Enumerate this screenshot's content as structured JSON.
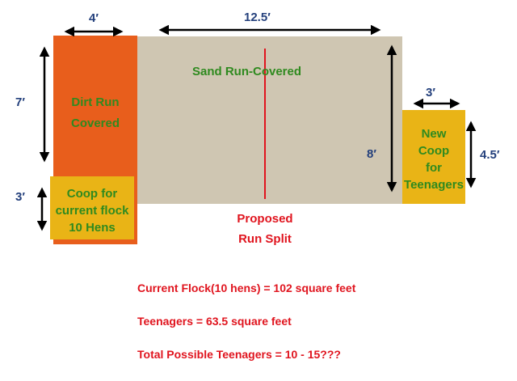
{
  "colors": {
    "dirt_run": "#e85e1c",
    "sand_run": "#cfc6b2",
    "coop": "#e9b416",
    "label_green": "#2f8a1f",
    "dimension_blue": "#24407c",
    "note_red": "#e0141e",
    "split_line": "#e0141e"
  },
  "areas": {
    "dirt_run": "Dirt Run Covered",
    "sand_run": "Sand Run-Covered",
    "current_coop": [
      "Coop for",
      "current flock",
      "10 Hens"
    ],
    "new_coop": [
      "New",
      "Coop",
      "for",
      "Teenagers"
    ]
  },
  "dimensions": {
    "dirt_width": "4′",
    "sand_width": "12.5′",
    "dirt_height": "7′",
    "coop_height": "3′",
    "sand_height": "8′",
    "new_coop_width": "3′",
    "new_coop_height": "4.5′"
  },
  "split_label": [
    "Proposed",
    "Run Split"
  ],
  "notes": [
    "Current Flock(10 hens) = 102 square feet",
    "Teenagers = 63.5 square feet",
    "Total Possible Teenagers = 10 - 15???"
  ]
}
